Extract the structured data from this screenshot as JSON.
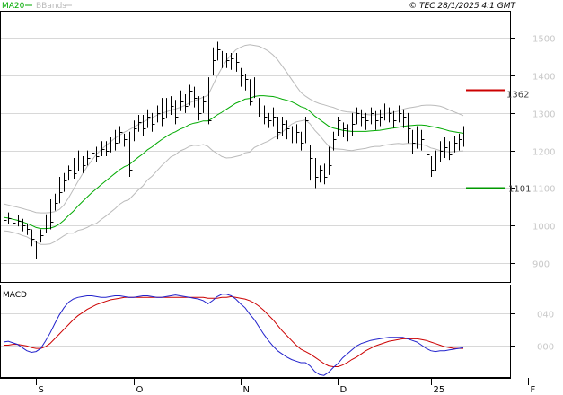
{
  "header": {
    "ma_label": "MA20",
    "bbands_label": "BBands",
    "source_label": "© TEC 28/1/2025 4:1 GMT"
  },
  "macd": {
    "label": "MACD",
    "ylim": [
      -40,
      75
    ],
    "y_ticks": [
      {
        "v": 40,
        "label": "040"
      },
      {
        "v": 0,
        "label": "000"
      }
    ]
  },
  "levels": {
    "resistance": {
      "value": 1362,
      "label": "1362",
      "color": "#cc0000"
    },
    "support": {
      "value": 1101,
      "label": "1101",
      "color": "#009900"
    }
  },
  "colors": {
    "price": "#000000",
    "ma": "#00aa00",
    "bbands": "#bbbbbb",
    "macd_line": "#2222cc",
    "signal_line": "#cc0000",
    "grid": "#d8d8d8"
  },
  "chart_data": {
    "type": "line",
    "ylim": [
      850,
      1570
    ],
    "y_ticks": [
      {
        "v": 900,
        "label": "900"
      },
      {
        "v": 1000,
        "label": "1000"
      },
      {
        "v": 1100,
        "label": "1100"
      },
      {
        "v": 1200,
        "label": "1200"
      },
      {
        "v": 1300,
        "label": "1300"
      },
      {
        "v": 1400,
        "label": "1400"
      },
      {
        "v": 1500,
        "label": "1500"
      }
    ],
    "x_labels": [
      {
        "i": 7,
        "label": "S"
      },
      {
        "i": 28,
        "label": "O"
      },
      {
        "i": 51,
        "label": "N"
      },
      {
        "i": 72,
        "label": "D"
      },
      {
        "i": 92,
        "label": "25"
      },
      {
        "i": 113,
        "label": "F"
      }
    ],
    "close": [
      1015,
      1020,
      1008,
      1012,
      1000,
      990,
      965,
      935,
      975,
      1005,
      1010,
      1060,
      1090,
      1120,
      1150,
      1140,
      1170,
      1160,
      1180,
      1195,
      1185,
      1205,
      1200,
      1215,
      1220,
      1250,
      1230,
      1150,
      1260,
      1275,
      1260,
      1290,
      1270,
      1300,
      1285,
      1310,
      1320,
      1290,
      1330,
      1320,
      1360,
      1340,
      1300,
      1330,
      1280,
      1440,
      1470,
      1450,
      1440,
      1445,
      1435,
      1400,
      1390,
      1330,
      1380,
      1310,
      1290,
      1280,
      1290,
      1250,
      1270,
      1260,
      1240,
      1250,
      1220,
      1280,
      1180,
      1130,
      1150,
      1130,
      1160,
      1230,
      1280,
      1260,
      1240,
      1270,
      1300,
      1290,
      1280,
      1300,
      1280,
      1290,
      1310,
      1300,
      1280,
      1300,
      1290,
      1260,
      1220,
      1240,
      1230,
      1190,
      1150,
      1170,
      1200,
      1210,
      1190,
      1220,
      1230,
      1240
    ],
    "high": [
      1035,
      1035,
      1025,
      1028,
      1018,
      1005,
      990,
      960,
      990,
      1030,
      1070,
      1085,
      1130,
      1140,
      1160,
      1180,
      1200,
      1185,
      1200,
      1210,
      1210,
      1225,
      1225,
      1235,
      1255,
      1265,
      1245,
      1250,
      1280,
      1295,
      1295,
      1310,
      1300,
      1320,
      1340,
      1340,
      1345,
      1335,
      1360,
      1350,
      1375,
      1370,
      1345,
      1345,
      1395,
      1475,
      1490,
      1465,
      1460,
      1460,
      1460,
      1420,
      1405,
      1390,
      1395,
      1340,
      1320,
      1300,
      1315,
      1290,
      1290,
      1280,
      1265,
      1270,
      1250,
      1290,
      1215,
      1180,
      1160,
      1165,
      1210,
      1250,
      1290,
      1275,
      1270,
      1300,
      1315,
      1310,
      1300,
      1315,
      1305,
      1310,
      1325,
      1315,
      1305,
      1320,
      1310,
      1300,
      1255,
      1265,
      1255,
      1220,
      1185,
      1200,
      1225,
      1235,
      1225,
      1240,
      1245,
      1265
    ],
    "low": [
      1000,
      1005,
      995,
      998,
      985,
      975,
      945,
      910,
      955,
      980,
      990,
      1040,
      1060,
      1090,
      1120,
      1125,
      1145,
      1140,
      1160,
      1175,
      1170,
      1185,
      1185,
      1195,
      1200,
      1220,
      1210,
      1130,
      1225,
      1250,
      1240,
      1260,
      1250,
      1275,
      1265,
      1285,
      1295,
      1270,
      1305,
      1300,
      1320,
      1315,
      1280,
      1300,
      1270,
      1400,
      1440,
      1420,
      1420,
      1415,
      1410,
      1370,
      1360,
      1320,
      1340,
      1290,
      1270,
      1260,
      1265,
      1230,
      1240,
      1230,
      1220,
      1220,
      1200,
      1220,
      1120,
      1100,
      1115,
      1110,
      1135,
      1200,
      1240,
      1235,
      1225,
      1240,
      1270,
      1265,
      1255,
      1270,
      1255,
      1265,
      1280,
      1275,
      1260,
      1275,
      1260,
      1220,
      1190,
      1205,
      1200,
      1150,
      1130,
      1145,
      1170,
      1180,
      1175,
      1195,
      1200,
      1210
    ],
    "ma20": [
      1022,
      1020,
      1017,
      1014,
      1010,
      1006,
      1001,
      995,
      992,
      992,
      993,
      997,
      1004,
      1014,
      1027,
      1038,
      1052,
      1064,
      1076,
      1088,
      1098,
      1109,
      1119,
      1129,
      1139,
      1149,
      1157,
      1162,
      1172,
      1182,
      1191,
      1202,
      1210,
      1220,
      1229,
      1237,
      1245,
      1250,
      1257,
      1262,
      1269,
      1273,
      1275,
      1279,
      1279,
      1286,
      1295,
      1302,
      1310,
      1318,
      1326,
      1331,
      1337,
      1339,
      1344,
      1346,
      1346,
      1345,
      1344,
      1341,
      1337,
      1334,
      1330,
      1324,
      1317,
      1313,
      1304,
      1292,
      1283,
      1274,
      1265,
      1260,
      1257,
      1254,
      1252,
      1251,
      1251,
      1251,
      1251,
      1252,
      1253,
      1254,
      1256,
      1258,
      1260,
      1262,
      1264,
      1266,
      1267,
      1268,
      1268,
      1267,
      1264,
      1262,
      1259,
      1256,
      1252,
      1250,
      1248,
      1246
    ],
    "bb_upper": [
      1058,
      1055,
      1052,
      1049,
      1046,
      1042,
      1039,
      1035,
      1034,
      1034,
      1035,
      1037,
      1043,
      1055,
      1074,
      1096,
      1117,
      1138,
      1157,
      1174,
      1190,
      1202,
      1213,
      1223,
      1233,
      1241,
      1249,
      1255,
      1262,
      1269,
      1276,
      1282,
      1288,
      1294,
      1299,
      1303,
      1307,
      1311,
      1315,
      1320,
      1327,
      1332,
      1337,
      1342,
      1347,
      1372,
      1398,
      1420,
      1440,
      1455,
      1468,
      1475,
      1480,
      1482,
      1480,
      1478,
      1472,
      1465,
      1455,
      1442,
      1425,
      1408,
      1390,
      1372,
      1355,
      1345,
      1337,
      1330,
      1325,
      1322,
      1318,
      1315,
      1310,
      1305,
      1303,
      1302,
      1300,
      1298,
      1296,
      1295,
      1295,
      1297,
      1298,
      1300,
      1302,
      1305,
      1310,
      1313,
      1315,
      1317,
      1320,
      1321,
      1321,
      1320,
      1318,
      1314,
      1308,
      1303,
      1298,
      1293
    ],
    "bb_lower": [
      986,
      985,
      982,
      979,
      974,
      970,
      963,
      955,
      950,
      950,
      951,
      957,
      965,
      973,
      980,
      980,
      987,
      990,
      995,
      1002,
      1006,
      1016,
      1025,
      1035,
      1045,
      1057,
      1065,
      1069,
      1082,
      1095,
      1106,
      1122,
      1132,
      1146,
      1159,
      1171,
      1183,
      1189,
      1199,
      1204,
      1211,
      1214,
      1213,
      1216,
      1211,
      1200,
      1192,
      1184,
      1180,
      1181,
      1184,
      1187,
      1194,
      1196,
      1208,
      1214,
      1220,
      1225,
      1233,
      1240,
      1249,
      1260,
      1270,
      1276,
      1279,
      1281,
      1271,
      1254,
      1241,
      1226,
      1212,
      1205,
      1204,
      1203,
      1201,
      1200,
      1202,
      1204,
      1206,
      1209,
      1211,
      1211,
      1214,
      1216,
      1218,
      1219,
      1218,
      1219,
      1219,
      1219,
      1216,
      1213,
      1207,
      1204,
      1200,
      1198,
      1196,
      1197,
      1198,
      1199
    ],
    "macd_line": [
      4,
      5,
      3,
      1,
      -3,
      -7,
      -9,
      -8,
      -4,
      5,
      15,
      27,
      38,
      47,
      54,
      58,
      60,
      61,
      62,
      62,
      61,
      60,
      60,
      61,
      62,
      62,
      61,
      60,
      60,
      61,
      62,
      62,
      61,
      60,
      60,
      61,
      62,
      63,
      62,
      61,
      60,
      59,
      58,
      56,
      52,
      56,
      61,
      64,
      64,
      62,
      58,
      52,
      47,
      39,
      32,
      23,
      14,
      6,
      -1,
      -7,
      -11,
      -15,
      -18,
      -20,
      -22,
      -22,
      -26,
      -33,
      -37,
      -38,
      -34,
      -28,
      -23,
      -16,
      -11,
      -6,
      -1,
      2,
      4,
      6,
      7,
      8,
      9,
      10,
      10,
      10,
      10,
      8,
      6,
      4,
      0,
      -4,
      -7,
      -8,
      -7,
      -7,
      -6,
      -5,
      -4,
      -3
    ],
    "signal_line": [
      0,
      0,
      1,
      1,
      0,
      -1,
      -3,
      -4,
      -4,
      -2,
      2,
      8,
      14,
      20,
      26,
      32,
      37,
      41,
      45,
      48,
      51,
      53,
      55,
      57,
      58,
      59,
      60,
      60,
      60,
      60,
      60,
      60,
      60,
      60,
      60,
      60,
      60,
      60,
      60,
      60,
      60,
      60,
      60,
      60,
      59,
      59,
      59,
      60,
      60,
      61,
      60,
      59,
      58,
      56,
      53,
      49,
      44,
      38,
      32,
      25,
      18,
      12,
      6,
      0,
      -5,
      -8,
      -11,
      -15,
      -19,
      -23,
      -26,
      -27,
      -27,
      -25,
      -22,
      -18,
      -15,
      -11,
      -7,
      -4,
      -1,
      1,
      3,
      5,
      6,
      7,
      8,
      8,
      8,
      8,
      7,
      6,
      4,
      2,
      0,
      -2,
      -3,
      -4,
      -4,
      -4
    ]
  }
}
